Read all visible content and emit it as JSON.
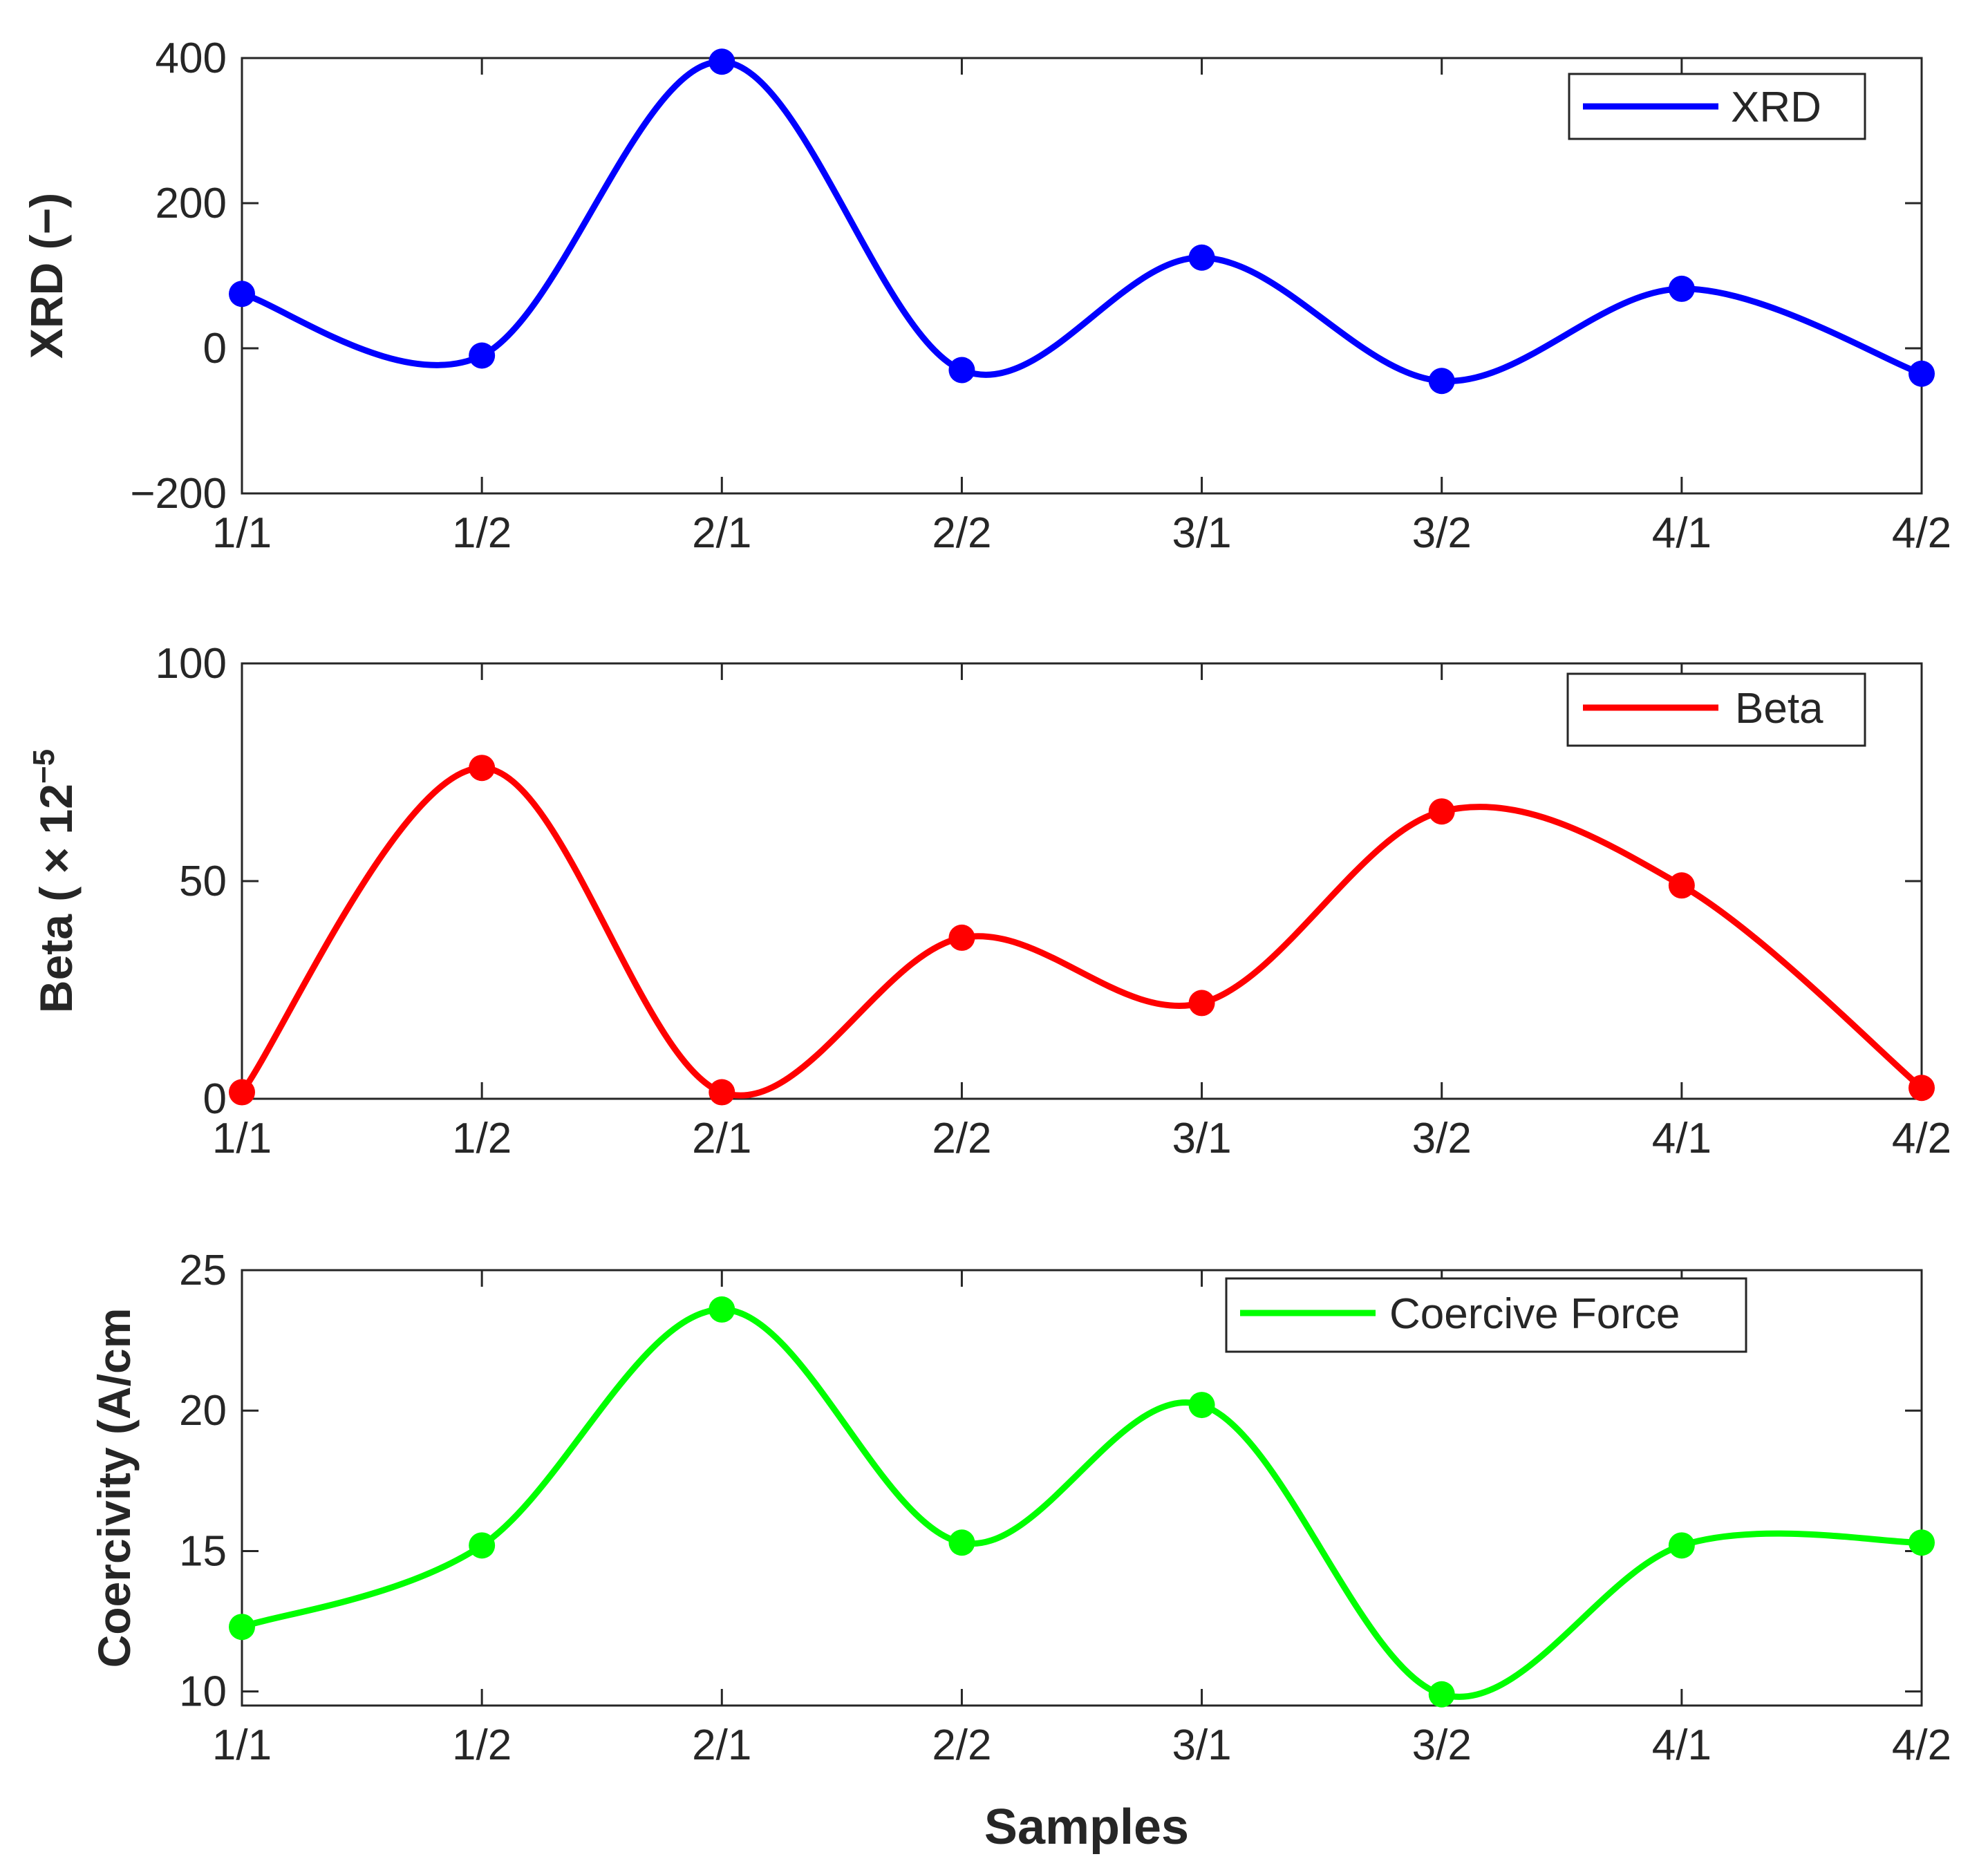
{
  "chart_data": [
    {
      "type": "line",
      "categories": [
        "1/1",
        "1/2",
        "2/1",
        "2/2",
        "3/1",
        "3/2",
        "4/1",
        "4/2"
      ],
      "series": [
        {
          "name": "XRD",
          "values": [
            75,
            -10,
            395,
            -30,
            125,
            -45,
            82,
            -35
          ],
          "color": "#0000ff"
        }
      ],
      "ylabel": "XRD (−)",
      "ylim": [
        -200,
        400
      ],
      "yticks": [
        -200,
        0,
        200,
        400
      ],
      "ytick_labels": [
        "−200",
        "0",
        "200",
        "400"
      ],
      "legend": {
        "position": "top-right",
        "label": "XRD"
      }
    },
    {
      "type": "line",
      "categories": [
        "1/1",
        "1/2",
        "2/1",
        "2/2",
        "3/1",
        "3/2",
        "4/1",
        "4/2"
      ],
      "series": [
        {
          "name": "Beta",
          "values": [
            1.5,
            76,
            1.5,
            37,
            22,
            66,
            49,
            2.5
          ],
          "color": "#ff0000"
        }
      ],
      "ylabel": "Beta  ( × 12",
      "ylabel_exponent": "−5",
      "ylim": [
        0,
        100
      ],
      "yticks": [
        0,
        50,
        100
      ],
      "ytick_labels": [
        "0",
        "50",
        "100"
      ],
      "legend": {
        "position": "top-right",
        "label": "Beta"
      }
    },
    {
      "type": "line",
      "categories": [
        "1/1",
        "1/2",
        "2/1",
        "2/2",
        "3/1",
        "3/2",
        "4/1",
        "4/2"
      ],
      "series": [
        {
          "name": "Coercive Force",
          "values": [
            12.3,
            15.2,
            23.6,
            15.3,
            20.2,
            9.9,
            15.2,
            15.3
          ],
          "color": "#00ff00"
        }
      ],
      "ylabel": "Coercivity (A/cm",
      "xlabel": "Samples",
      "ylim": [
        9.5,
        25
      ],
      "yticks": [
        10,
        15,
        20,
        25
      ],
      "ytick_labels": [
        "10",
        "15",
        "20",
        "25"
      ],
      "legend": {
        "position": "top-right",
        "label": "Coercive Force"
      }
    }
  ]
}
